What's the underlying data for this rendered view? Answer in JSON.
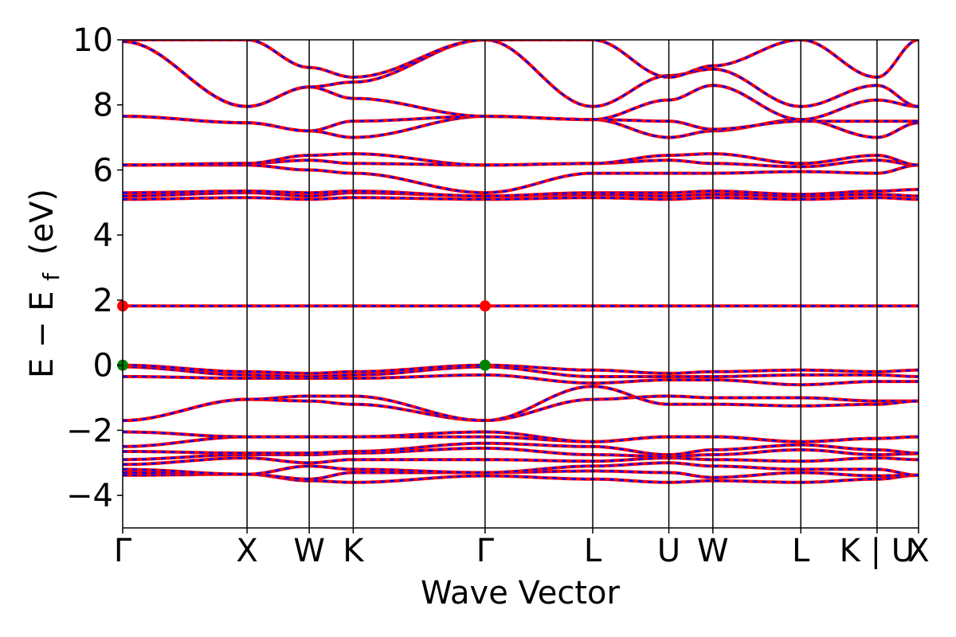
{
  "chart_data": {
    "type": "line",
    "title": "",
    "xlabel": "Wave Vector",
    "ylabel": "E − E",
    "ylabel_subscript": "f",
    "ylabel_unit": "(eV)",
    "ylim": [
      -5,
      10
    ],
    "yticks": [
      {
        "value": -4,
        "label": "−4"
      },
      {
        "value": -2,
        "label": "−2"
      },
      {
        "value": 0,
        "label": "0"
      },
      {
        "value": 2,
        "label": "2"
      },
      {
        "value": 4,
        "label": "4"
      },
      {
        "value": 6,
        "label": "6"
      },
      {
        "value": 8,
        "label": "8"
      },
      {
        "value": 10,
        "label": "10"
      }
    ],
    "path_length": 6.4,
    "kpoints": [
      {
        "label": "Γ",
        "x": 0.0
      },
      {
        "label": "X",
        "x": 1.0
      },
      {
        "label": "W",
        "x": 1.5
      },
      {
        "label": "K",
        "x": 1.854
      },
      {
        "label": "Γ",
        "x": 2.914
      },
      {
        "label": "L",
        "x": 3.78
      },
      {
        "label": "U",
        "x": 4.392
      },
      {
        "label": "W",
        "x": 4.746
      },
      {
        "label": "L",
        "x": 5.453
      },
      {
        "label": "K | U",
        "x": 6.066
      },
      {
        "label": "X",
        "x": 6.4
      }
    ],
    "band_colors": {
      "spin_up": "#ff0000",
      "spin_down": "#0000ff"
    },
    "markers": [
      {
        "x": 0.0,
        "y": 1.82,
        "color": "#ff0000",
        "meaning": "CBM"
      },
      {
        "x": 2.914,
        "y": 1.82,
        "color": "#ff0000",
        "meaning": "CBM"
      },
      {
        "x": 0.0,
        "y": 0.0,
        "color": "#008000",
        "meaning": "VBM"
      },
      {
        "x": 2.914,
        "y": 0.0,
        "color": "#008000",
        "meaning": "VBM"
      }
    ],
    "bands": [
      {
        "name": "b1",
        "values": [
          -3.38,
          -3.35,
          -3.55,
          -3.6,
          -3.4,
          -3.5,
          -3.6,
          -3.55,
          -3.6,
          -3.5,
          -3.38
        ]
      },
      {
        "name": "b2",
        "values": [
          -3.3,
          -3.35,
          -3.5,
          -3.3,
          -3.3,
          -3.25,
          -3.3,
          -3.45,
          -3.3,
          -3.4,
          -3.38
        ]
      },
      {
        "name": "b3",
        "values": [
          -3.2,
          -3.35,
          -3.1,
          -3.2,
          -3.3,
          -3.1,
          -3.0,
          -3.1,
          -3.2,
          -3.2,
          -3.38
        ]
      },
      {
        "name": "b4",
        "values": [
          -3.05,
          -2.85,
          -3.0,
          -2.9,
          -2.9,
          -2.95,
          -2.85,
          -2.9,
          -2.95,
          -2.85,
          -2.9
        ]
      },
      {
        "name": "b5",
        "values": [
          -2.9,
          -2.75,
          -2.75,
          -2.7,
          -2.55,
          -2.75,
          -2.8,
          -2.75,
          -2.6,
          -2.75,
          -2.72
        ]
      },
      {
        "name": "b6",
        "values": [
          -2.65,
          -2.7,
          -2.7,
          -2.65,
          -2.4,
          -2.5,
          -2.75,
          -2.6,
          -2.45,
          -2.6,
          -2.7
        ]
      },
      {
        "name": "b7",
        "values": [
          -2.5,
          -2.2,
          -2.2,
          -2.2,
          -2.2,
          -2.35,
          -2.2,
          -2.2,
          -2.35,
          -2.25,
          -2.2
        ]
      },
      {
        "name": "b8",
        "values": [
          -2.05,
          -2.2,
          -2.2,
          -2.2,
          -2.05,
          -2.35,
          -2.2,
          -2.2,
          -2.35,
          -2.25,
          -2.2
        ]
      },
      {
        "name": "b9",
        "values": [
          -1.7,
          -1.05,
          -1.1,
          -1.2,
          -1.7,
          -1.05,
          -0.95,
          -1.0,
          -1.0,
          -1.1,
          -1.1
        ]
      },
      {
        "name": "b10",
        "values": [
          -1.7,
          -1.05,
          -0.95,
          -0.95,
          -1.7,
          -0.65,
          -1.2,
          -1.2,
          -1.25,
          -1.2,
          -1.1
        ]
      },
      {
        "name": "b11",
        "values": [
          -0.35,
          -0.4,
          -0.4,
          -0.4,
          -0.3,
          -0.55,
          -0.45,
          -0.45,
          -0.6,
          -0.5,
          -0.5
        ]
      },
      {
        "name": "b12",
        "values": [
          -0.05,
          -0.3,
          -0.35,
          -0.3,
          -0.05,
          -0.35,
          -0.35,
          -0.35,
          -0.3,
          -0.3,
          -0.35
        ]
      },
      {
        "name": "b13",
        "values": [
          0.0,
          -0.2,
          -0.25,
          -0.2,
          0.0,
          -0.15,
          -0.25,
          -0.2,
          -0.15,
          -0.2,
          -0.15
        ]
      },
      {
        "name": "b14",
        "values": [
          1.82,
          1.82,
          1.82,
          1.82,
          1.82,
          1.82,
          1.82,
          1.82,
          1.82,
          1.82,
          1.82
        ]
      },
      {
        "name": "b15",
        "values": [
          5.1,
          5.15,
          5.1,
          5.15,
          5.1,
          5.15,
          5.1,
          5.15,
          5.1,
          5.15,
          5.1
        ]
      },
      {
        "name": "b16",
        "values": [
          5.2,
          5.3,
          5.2,
          5.3,
          5.2,
          5.25,
          5.2,
          5.25,
          5.2,
          5.25,
          5.2
        ]
      },
      {
        "name": "b17",
        "values": [
          5.3,
          5.35,
          5.3,
          5.35,
          5.2,
          5.3,
          5.3,
          5.35,
          5.25,
          5.35,
          5.4
        ]
      },
      {
        "name": "b18",
        "values": [
          6.15,
          6.15,
          6.0,
          5.9,
          5.3,
          5.9,
          5.9,
          5.9,
          5.95,
          5.9,
          6.15
        ]
      },
      {
        "name": "b19",
        "values": [
          6.15,
          6.2,
          6.3,
          6.2,
          6.15,
          6.2,
          6.3,
          6.2,
          6.1,
          6.3,
          6.15
        ]
      },
      {
        "name": "b20",
        "values": [
          6.15,
          6.2,
          6.45,
          6.5,
          6.15,
          6.2,
          6.45,
          6.5,
          6.2,
          6.45,
          6.15
        ]
      },
      {
        "name": "b21",
        "values": [
          7.65,
          7.45,
          7.2,
          7.0,
          7.65,
          7.55,
          7.0,
          7.2,
          7.55,
          7.0,
          7.45
        ]
      },
      {
        "name": "b22",
        "values": [
          7.65,
          7.45,
          7.2,
          7.5,
          7.65,
          7.55,
          7.5,
          7.25,
          7.5,
          7.5,
          7.5
        ]
      },
      {
        "name": "b23",
        "values": [
          9.95,
          7.95,
          8.55,
          8.2,
          7.65,
          7.55,
          8.15,
          8.6,
          7.55,
          8.15,
          7.95
        ]
      },
      {
        "name": "b24",
        "values": [
          9.95,
          7.95,
          8.55,
          8.7,
          10.0,
          7.95,
          8.9,
          9.1,
          7.95,
          8.6,
          7.95
        ]
      },
      {
        "name": "b25",
        "values": [
          10.0,
          10.0,
          9.15,
          8.85,
          10.0,
          10.0,
          8.85,
          9.2,
          10.0,
          8.85,
          10.0
        ]
      }
    ]
  }
}
